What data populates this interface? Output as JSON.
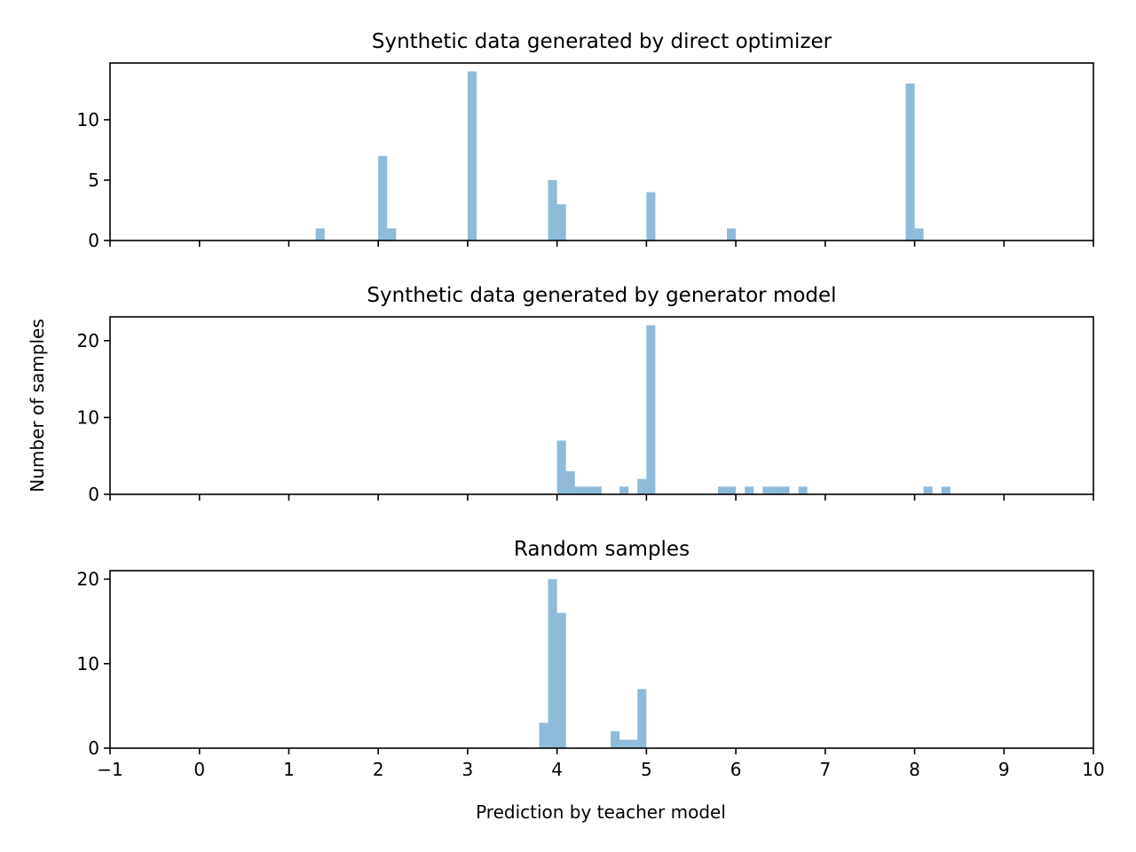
{
  "figure": {
    "xlabel": "Prediction by teacher model",
    "ylabel": "Number of samples"
  },
  "chart_data": [
    {
      "type": "bar",
      "title": "Synthetic data generated by direct optimizer",
      "bin_width": 0.1,
      "xlim": [
        -1,
        10
      ],
      "ylim": [
        0,
        14.7
      ],
      "yticks": [
        0,
        5,
        10
      ],
      "xticks": [],
      "xtick_labels_visible": false,
      "bar_color": "#1f77b4",
      "bar_opacity": 0.5,
      "bars": [
        {
          "x": 1.3,
          "count": 1
        },
        {
          "x": 2.0,
          "count": 7
        },
        {
          "x": 2.1,
          "count": 1
        },
        {
          "x": 3.0,
          "count": 14
        },
        {
          "x": 3.9,
          "count": 5
        },
        {
          "x": 4.0,
          "count": 3
        },
        {
          "x": 5.0,
          "count": 4
        },
        {
          "x": 5.9,
          "count": 1
        },
        {
          "x": 7.9,
          "count": 13
        },
        {
          "x": 8.0,
          "count": 1
        }
      ]
    },
    {
      "type": "bar",
      "title": "Synthetic data generated by generator model",
      "bin_width": 0.1,
      "xlim": [
        -1,
        10
      ],
      "ylim": [
        0,
        23.1
      ],
      "yticks": [
        0,
        10,
        20
      ],
      "xticks": [],
      "xtick_labels_visible": false,
      "bar_color": "#1f77b4",
      "bar_opacity": 0.5,
      "bars": [
        {
          "x": 4.0,
          "count": 7
        },
        {
          "x": 4.1,
          "count": 3
        },
        {
          "x": 4.2,
          "count": 1
        },
        {
          "x": 4.3,
          "count": 1
        },
        {
          "x": 4.4,
          "count": 1
        },
        {
          "x": 4.7,
          "count": 1
        },
        {
          "x": 4.9,
          "count": 2
        },
        {
          "x": 5.0,
          "count": 22
        },
        {
          "x": 5.8,
          "count": 1
        },
        {
          "x": 5.9,
          "count": 1
        },
        {
          "x": 6.1,
          "count": 1
        },
        {
          "x": 6.3,
          "count": 1
        },
        {
          "x": 6.4,
          "count": 1
        },
        {
          "x": 6.5,
          "count": 1
        },
        {
          "x": 6.7,
          "count": 1
        },
        {
          "x": 8.1,
          "count": 1
        },
        {
          "x": 8.3,
          "count": 1
        }
      ]
    },
    {
      "type": "bar",
      "title": "Random samples",
      "bin_width": 0.1,
      "xlim": [
        -1,
        10
      ],
      "ylim": [
        0,
        21
      ],
      "yticks": [
        0,
        10,
        20
      ],
      "xticks": [
        "−1",
        "0",
        "1",
        "2",
        "3",
        "4",
        "5",
        "6",
        "7",
        "8",
        "9",
        "10"
      ],
      "xtick_labels_visible": true,
      "bar_color": "#1f77b4",
      "bar_opacity": 0.5,
      "bars": [
        {
          "x": 3.8,
          "count": 3
        },
        {
          "x": 3.9,
          "count": 20
        },
        {
          "x": 4.0,
          "count": 16
        },
        {
          "x": 4.6,
          "count": 2
        },
        {
          "x": 4.7,
          "count": 1
        },
        {
          "x": 4.8,
          "count": 1
        },
        {
          "x": 4.9,
          "count": 7
        }
      ]
    }
  ]
}
